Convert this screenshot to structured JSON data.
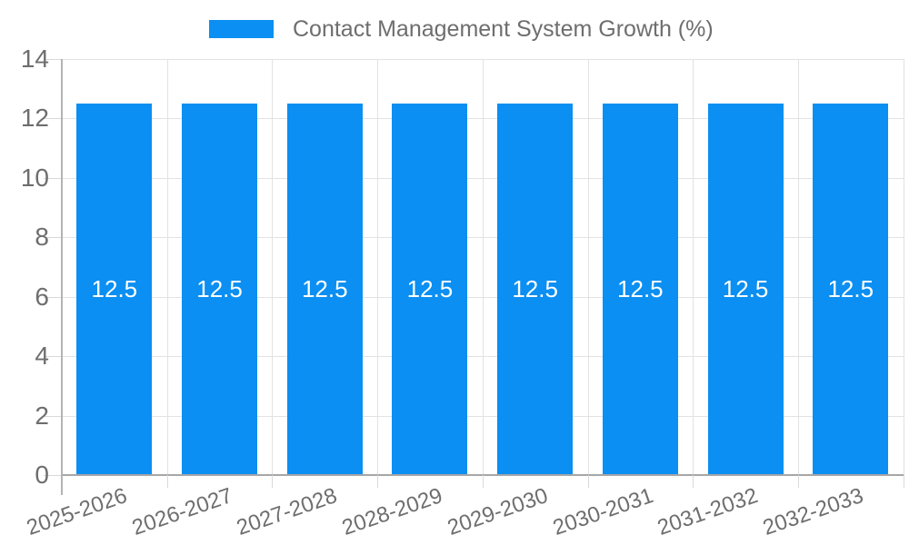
{
  "chart_data": {
    "type": "bar",
    "title": "Contact Management System Growth (%)",
    "categories": [
      "2025-2026",
      "2026-2027",
      "2027-2028",
      "2028-2029",
      "2029-2030",
      "2030-2031",
      "2031-2032",
      "2032-2033"
    ],
    "series": [
      {
        "name": "Contact Management System Growth (%)",
        "values": [
          12.5,
          12.5,
          12.5,
          12.5,
          12.5,
          12.5,
          12.5,
          12.5
        ]
      }
    ],
    "bar_labels": [
      "12.5",
      "12.5",
      "12.5",
      "12.5",
      "12.5",
      "12.5",
      "12.5",
      "12.5"
    ],
    "y_ticks": [
      0,
      2,
      4,
      6,
      8,
      10,
      12,
      14
    ],
    "ylim": [
      0,
      14
    ],
    "xlabel": "",
    "ylabel": "",
    "legend_position": "top",
    "grid": true,
    "colors": {
      "bar": "#0b8ff2",
      "grid": "#e2e2e2",
      "axis_line": "#b3b3b3",
      "baseline": "#a6a6a6",
      "text": "#6e6e6e",
      "bar_label": "#ffffff"
    }
  }
}
